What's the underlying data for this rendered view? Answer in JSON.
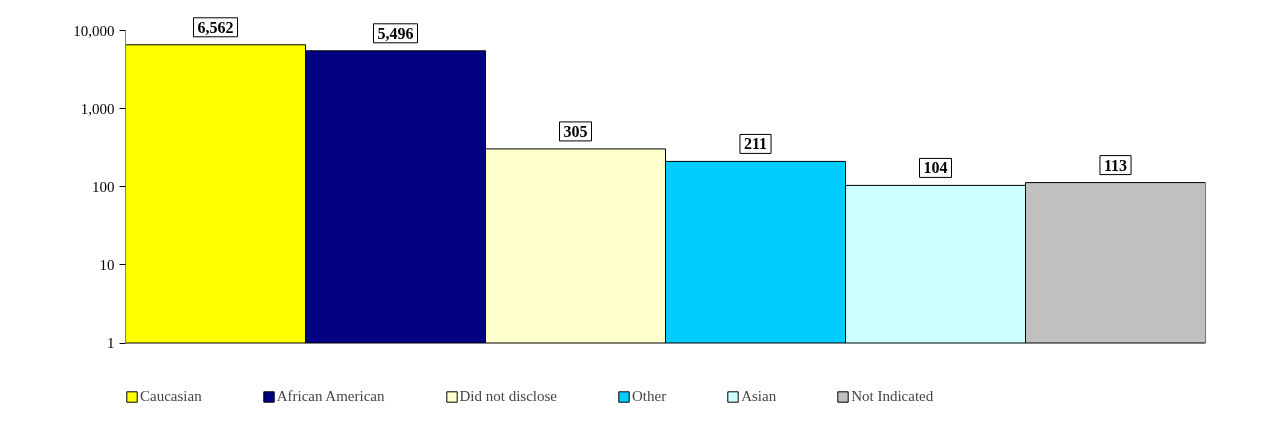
{
  "chart_data": {
    "type": "bar",
    "categories": [
      null,
      null,
      null,
      null,
      null,
      null
    ],
    "series": [
      {
        "name": "Caucasian",
        "color": "#ffff00",
        "values": [
          6562,
          null,
          null,
          null,
          null,
          null
        ],
        "value_labels": [
          "6,562",
          null,
          null,
          null,
          null,
          null
        ]
      },
      {
        "name": "African American",
        "color": "#000080",
        "values": [
          null,
          5496,
          null,
          null,
          null,
          null
        ],
        "value_labels": [
          null,
          "5,496",
          null,
          null,
          null,
          null
        ]
      },
      {
        "name": "Did not disclose",
        "color": "#ffffcc",
        "values": [
          null,
          null,
          305,
          null,
          null,
          null
        ],
        "value_labels": [
          null,
          null,
          "305",
          null,
          null,
          null
        ]
      },
      {
        "name": "Other",
        "color": "#00ccff",
        "values": [
          null,
          null,
          null,
          211,
          null,
          null
        ],
        "value_labels": [
          null,
          null,
          null,
          "211",
          null,
          null
        ]
      },
      {
        "name": "Asian",
        "color": "#ccffff",
        "values": [
          null,
          null,
          null,
          null,
          104,
          null
        ],
        "value_labels": [
          null,
          null,
          null,
          null,
          "104",
          null
        ]
      },
      {
        "name": "Not Indicated",
        "color": "#c0c0c0",
        "values": [
          null,
          null,
          null,
          null,
          null,
          113
        ],
        "value_labels": [
          null,
          null,
          null,
          null,
          null,
          "113"
        ]
      }
    ],
    "log": "y",
    "ylim": [
      1,
      10000
    ],
    "yticks": [
      {
        "value": 1,
        "label": "1"
      },
      {
        "value": 10,
        "label": "10"
      },
      {
        "value": 100,
        "label": "100"
      },
      {
        "value": 1000,
        "label": "1,000"
      },
      {
        "value": 10000,
        "label": "10,000"
      }
    ],
    "legend": "bottom",
    "grid": false,
    "tick_labels": "y"
  }
}
